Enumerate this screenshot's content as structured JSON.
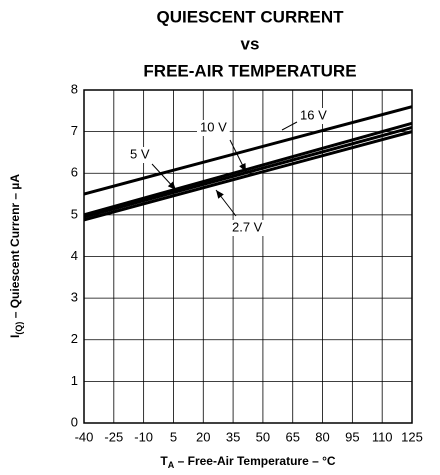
{
  "chart_data": {
    "type": "line",
    "title_lines": [
      "QUIESCENT CURRENT",
      "vs",
      "FREE-AIR TEMPERATURE"
    ],
    "xlabel": {
      "main": "T",
      "sub": "A",
      "rest": " – Free-Air Temperature – °C"
    },
    "ylabel": {
      "main": "I",
      "sub": "(Q)",
      "rest": " – Quiescent Currenr – µA"
    },
    "x": [
      -40,
      125
    ],
    "series": [
      {
        "name": "16 V",
        "color": "#000000",
        "values": [
          5.5,
          7.6
        ]
      },
      {
        "name": "10 V",
        "color": "#000000",
        "values": [
          5.0,
          7.2
        ]
      },
      {
        "name": "5 V",
        "color": "#000000",
        "values": [
          4.95,
          7.1
        ]
      },
      {
        "name": "2.7 V",
        "color": "#000000",
        "values": [
          4.88,
          7.0
        ]
      }
    ],
    "xlim": [
      -40,
      125
    ],
    "xticks": [
      -40,
      -25,
      -10,
      5,
      20,
      35,
      50,
      65,
      80,
      95,
      110,
      125
    ],
    "ylim": [
      0,
      8
    ],
    "yticks": [
      0,
      1,
      2,
      3,
      4,
      5,
      6,
      7,
      8
    ],
    "grid": true
  }
}
